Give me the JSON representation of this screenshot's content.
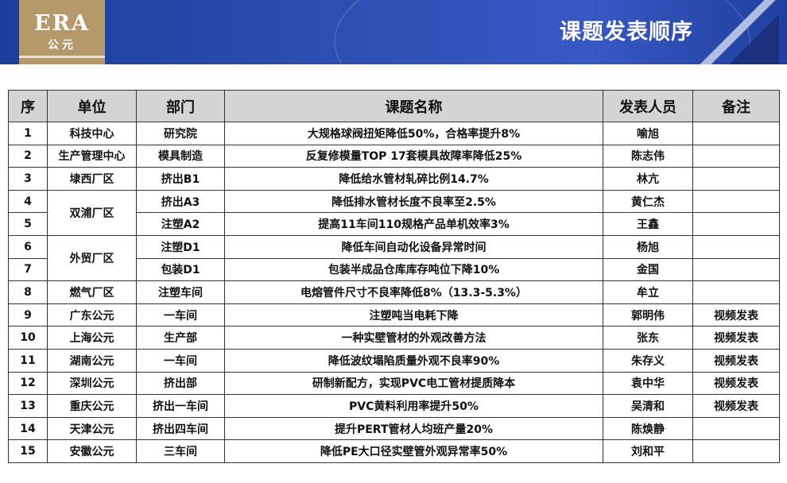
{
  "header": {
    "logo_text": "ERA",
    "logo_sub": "公元",
    "title": "课题发表顺序"
  },
  "table": {
    "columns": [
      "序",
      "单位",
      "部门",
      "课题名称",
      "发表人员",
      "备注"
    ],
    "rows": [
      {
        "no": "1",
        "unit": "科技中心",
        "dept": "研究院",
        "topic": "大规格球阀扭矩降低50%，合格率提升8%",
        "presenter": "喻旭",
        "note": ""
      },
      {
        "no": "2",
        "unit": "生产管理中心",
        "dept": "模具制造",
        "topic": "反复修模量TOP 17套模具故障率降低25%",
        "presenter": "陈志伟",
        "note": ""
      },
      {
        "no": "3",
        "unit": "埭西厂区",
        "dept": "挤出B1",
        "topic": "降低给水管材轧碎比例14.7%",
        "presenter": "林亢",
        "note": ""
      },
      {
        "no": "4",
        "unit": "双浦厂区",
        "dept": "挤出A3",
        "topic": "降低排水管材长度不良率至2.5%",
        "presenter": "黄仁杰",
        "note": ""
      },
      {
        "no": "5",
        "unit": "",
        "dept": "注塑A2",
        "topic": "提高11车间110规格产品单机效率3%",
        "presenter": "王鑫",
        "note": ""
      },
      {
        "no": "6",
        "unit": "外贸厂区",
        "dept": "注塑D1",
        "topic": "降低车间自动化设备异常时间",
        "presenter": "杨旭",
        "note": ""
      },
      {
        "no": "7",
        "unit": "",
        "dept": "包装D1",
        "topic": "包装半成品仓库库存吨位下降10%",
        "presenter": "金国",
        "note": ""
      },
      {
        "no": "8",
        "unit": "燃气厂区",
        "dept": "注塑车间",
        "topic": "电熔管件尺寸不良率降低8%（13.3-5.3%）",
        "presenter": "牟立",
        "note": ""
      },
      {
        "no": "9",
        "unit": "广东公元",
        "dept": "一车间",
        "topic": "注塑吨当电耗下降",
        "presenter": "郭明伟",
        "note": "视频发表"
      },
      {
        "no": "10",
        "unit": "上海公元",
        "dept": "生产部",
        "topic": "一种实壁管材的外观改善方法",
        "presenter": "张东",
        "note": "视频发表"
      },
      {
        "no": "11",
        "unit": "湖南公元",
        "dept": "一车间",
        "topic": "降低波纹塌陷质量外观不良率90%",
        "presenter": "朱存义",
        "note": "视频发表"
      },
      {
        "no": "12",
        "unit": "深圳公元",
        "dept": "挤出部",
        "topic": "研制新配方，实现PVC电工管材提质降本",
        "presenter": "袁中华",
        "note": "视频发表"
      },
      {
        "no": "13",
        "unit": "重庆公元",
        "dept": "挤出一车间",
        "topic": "PVC黄料利用率提升50%",
        "presenter": "吴清和",
        "note": "视频发表"
      },
      {
        "no": "14",
        "unit": "天津公元",
        "dept": "挤出四车间",
        "topic": "提升PERT管材人均班产量20%",
        "presenter": "陈焕静",
        "note": ""
      },
      {
        "no": "15",
        "unit": "安徽公元",
        "dept": "三车间",
        "topic": "降低PE大口径实壁管外观异常率50%",
        "presenter": "刘和平",
        "note": ""
      }
    ]
  }
}
